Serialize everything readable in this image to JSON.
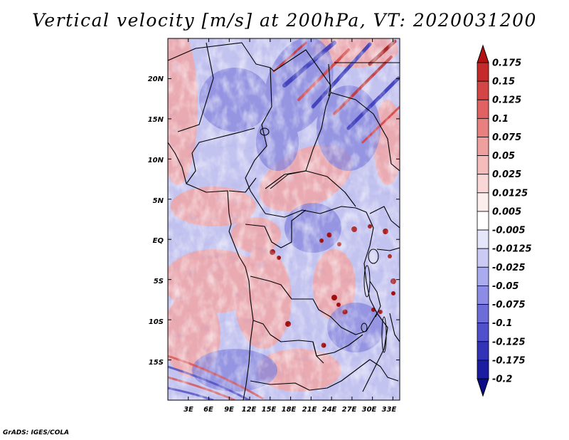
{
  "title": "Vertical velocity [m/s] at 200hPa, VT: 2020031200",
  "credit": "GrADS: IGES/COLA",
  "map": {
    "lon_labels": [
      "3E",
      "6E",
      "9E",
      "12E",
      "15E",
      "18E",
      "21E",
      "24E",
      "27E",
      "30E",
      "33E"
    ],
    "lat_labels": [
      "20N",
      "15N",
      "10N",
      "5N",
      "EQ",
      "5S",
      "10S",
      "15S"
    ],
    "lon_range": [
      0,
      34
    ],
    "lat_range": [
      -20,
      25
    ]
  },
  "colorbar": {
    "labels": [
      "0.175",
      "0.15",
      "0.125",
      "0.1",
      "0.075",
      "0.05",
      "0.025",
      "0.0125",
      "0.005",
      "-0.005",
      "-0.0125",
      "-0.025",
      "-0.05",
      "-0.075",
      "-0.1",
      "-0.125",
      "-0.175",
      "-0.2"
    ],
    "colors": [
      "#b31212",
      "#c52a2a",
      "#d44545",
      "#e06262",
      "#e98080",
      "#f09f9f",
      "#f5bcbc",
      "#fad7d7",
      "#fdeeee",
      "#ffffff",
      "#e6e6fb",
      "#cacaf5",
      "#aaaaee",
      "#8c8ce6",
      "#6d6dda",
      "#5050cc",
      "#3333b8",
      "#1c1ca0",
      "#0c0c88"
    ]
  }
}
